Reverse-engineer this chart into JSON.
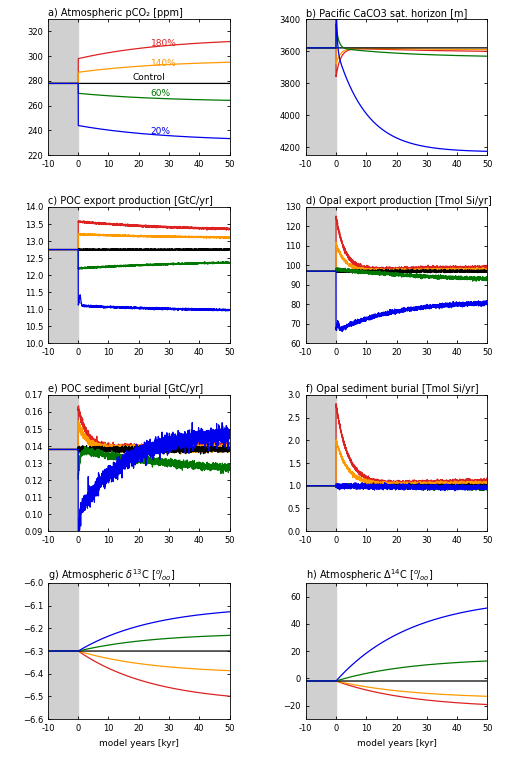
{
  "title_a": "a) Atmospheric pCO₂ [ppm]",
  "title_b": "b) Pacific CaCO3 sat. horizon [m]",
  "title_c": "c) POC export production [GtC/yr]",
  "title_d": "d) Opal export production [Tmol Si/yr]",
  "title_e": "e) POC sediment burial [GtC/yr]",
  "title_f": "f) Opal sediment burial [Tmol Si/yr]",
  "title_g": "g) Atmospheric δ¹³C [°/₀₀]",
  "title_h": "h) Atmospheric Δ¹⁴C [°/₀₀]",
  "xlabel": "model years [kyr]",
  "colors": {
    "red": "#dd2222",
    "orange": "#ff9900",
    "black": "#000000",
    "green": "#007700",
    "blue": "#0000ee"
  },
  "labels": [
    "180%",
    "140%",
    "Control",
    "60%",
    "20%"
  ],
  "xlim": [
    -10,
    50
  ],
  "gray_region": [
    -10,
    0
  ]
}
